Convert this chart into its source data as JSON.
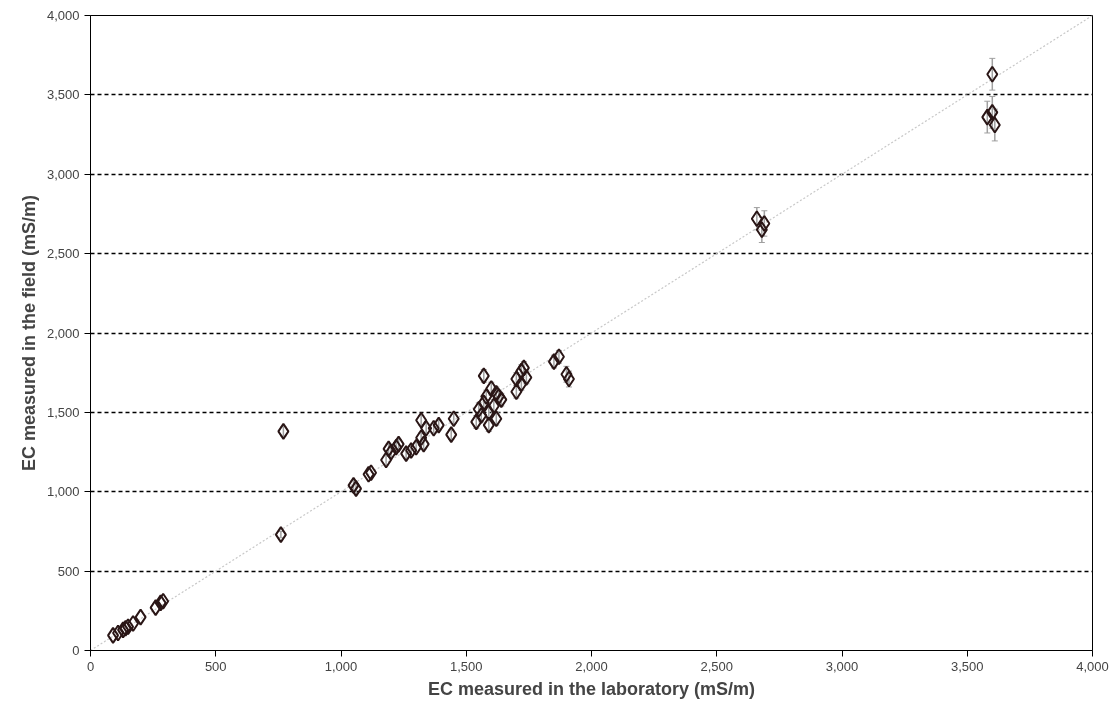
{
  "chart_data": {
    "type": "scatter",
    "xlabel": "EC measured in the laboratory (mS/m)",
    "ylabel": "EC measured in the field (mS/m)",
    "xlim": [
      0,
      4000
    ],
    "ylim": [
      0,
      4000
    ],
    "xticks": [
      0,
      500,
      {
        "value": 1000,
        "label": "1,000"
      },
      {
        "value": 1500,
        "label": "1,500"
      },
      {
        "value": 2000,
        "label": "2,000"
      },
      {
        "value": 2500,
        "label": "2,500"
      },
      {
        "value": 3000,
        "label": "3,000"
      },
      {
        "value": 3500,
        "label": "3,500"
      },
      {
        "value": 4000,
        "label": "4,000"
      }
    ],
    "yticks": [
      0,
      500,
      {
        "value": 1000,
        "label": "1,000"
      },
      {
        "value": 1500,
        "label": "1,500"
      },
      {
        "value": 2000,
        "label": "2,000"
      },
      {
        "value": 2500,
        "label": "2,500"
      },
      {
        "value": 3000,
        "label": "3,000"
      },
      {
        "value": 3500,
        "label": "3,500"
      },
      {
        "value": 4000,
        "label": "4,000"
      }
    ],
    "grid": "y",
    "series": [
      {
        "color": "#2a1616",
        "marker": "diamond",
        "x": [
          90,
          110,
          130,
          140,
          150,
          170,
          200,
          260,
          280,
          290,
          760,
          770,
          1050,
          1060,
          1110,
          1120,
          1180,
          1190,
          1200,
          1220,
          1230,
          1260,
          1280,
          1300,
          1320,
          1320,
          1330,
          1340,
          1370,
          1390,
          1440,
          1450,
          1540,
          1550,
          1560,
          1570,
          1570,
          1580,
          1590,
          1590,
          1600,
          1610,
          1620,
          1620,
          1630,
          1640,
          1700,
          1700,
          1720,
          1730,
          1720,
          1740,
          1850,
          1870,
          1900,
          1910,
          2660,
          2680,
          2690,
          3580,
          3600,
          3610,
          3600
        ],
        "values": [
          95,
          110,
          130,
          140,
          150,
          170,
          210,
          270,
          300,
          310,
          730,
          1380,
          1040,
          1020,
          1110,
          1120,
          1200,
          1270,
          1250,
          1280,
          1300,
          1240,
          1260,
          1280,
          1340,
          1450,
          1300,
          1400,
          1400,
          1420,
          1360,
          1460,
          1440,
          1520,
          1480,
          1730,
          1560,
          1600,
          1420,
          1500,
          1650,
          1540,
          1620,
          1460,
          1600,
          1580,
          1630,
          1710,
          1760,
          1780,
          1680,
          1720,
          1820,
          1850,
          1740,
          1710,
          2720,
          2650,
          2690,
          3360,
          3390,
          3310,
          3630
        ],
        "errors": [
          null,
          null,
          null,
          null,
          null,
          null,
          null,
          null,
          null,
          null,
          20,
          30,
          30,
          30,
          null,
          null,
          30,
          30,
          30,
          30,
          30,
          30,
          30,
          30,
          30,
          30,
          30,
          30,
          30,
          30,
          30,
          30,
          40,
          40,
          40,
          40,
          40,
          40,
          40,
          40,
          40,
          40,
          40,
          40,
          40,
          40,
          40,
          40,
          40,
          40,
          40,
          40,
          40,
          40,
          50,
          50,
          70,
          80,
          80,
          100,
          100,
          100,
          100
        ]
      },
      {
        "type": "line",
        "color": "#c8c8c8",
        "line_style": "dotted",
        "marker": "none",
        "x": [
          0,
          4000
        ],
        "values": [
          0,
          4000
        ]
      }
    ]
  }
}
